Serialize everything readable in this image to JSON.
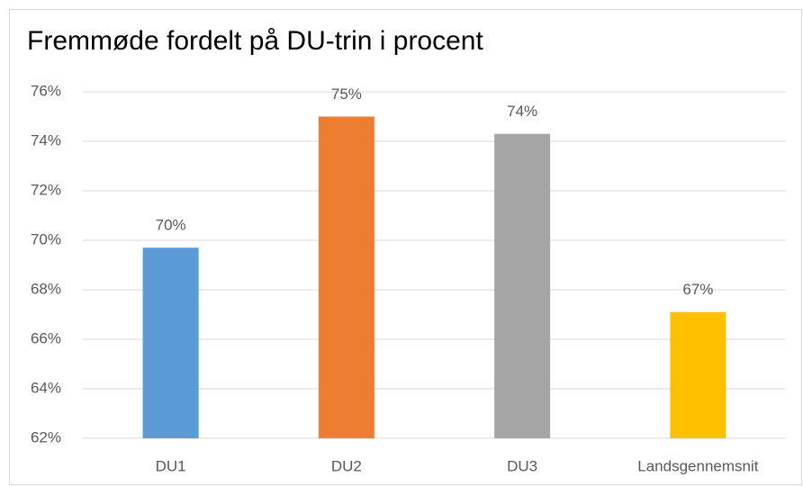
{
  "chart_data": {
    "type": "bar",
    "title": "Fremmøde fordelt på DU-trin i procent",
    "categories": [
      "DU1",
      "DU2",
      "DU3",
      "Landsgennemsnit"
    ],
    "values": [
      69.7,
      75.0,
      74.3,
      67.1
    ],
    "value_labels": [
      "70%",
      "75%",
      "74%",
      "67%"
    ],
    "colors": [
      "#5b9bd5",
      "#ed7d31",
      "#a5a5a5",
      "#ffc000"
    ],
    "ylim": [
      62,
      76
    ],
    "yticks": [
      {
        "value": 62,
        "label": "62%"
      },
      {
        "value": 64,
        "label": "64%"
      },
      {
        "value": 66,
        "label": "66%"
      },
      {
        "value": 68,
        "label": "68%"
      },
      {
        "value": 70,
        "label": "70%"
      },
      {
        "value": 72,
        "label": "72%"
      },
      {
        "value": 74,
        "label": "74%"
      },
      {
        "value": 76,
        "label": "76%"
      }
    ],
    "grid": true
  }
}
